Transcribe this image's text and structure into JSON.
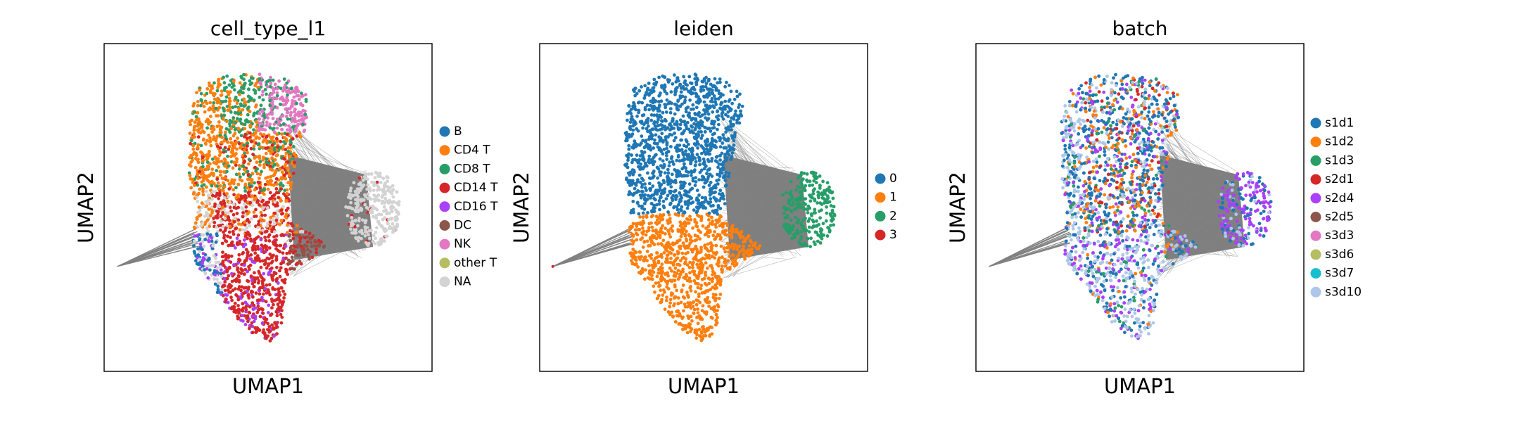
{
  "figure": {
    "type": "umap_embedding_panels",
    "background": "#ffffff",
    "edge_color": "#808080"
  },
  "chart_data": [
    {
      "type": "scatter",
      "title": "cell_type_l1",
      "xlabel": "UMAP1",
      "ylabel": "UMAP2",
      "xticks": false,
      "yticks": false,
      "grid": false,
      "legend_position": "right",
      "categories": [
        "B",
        "CD4 T",
        "CD8 T",
        "CD14 T",
        "CD16 T",
        "DC",
        "NK",
        "other T",
        "NA"
      ],
      "colors": [
        "#1f77b4",
        "#ff7f0e",
        "#279e68",
        "#d62728",
        "#aa40fc",
        "#8c564b",
        "#e377c2",
        "#b5bd61",
        "#d3d3d3"
      ]
    },
    {
      "type": "scatter",
      "title": "leiden",
      "xlabel": "UMAP1",
      "ylabel": "UMAP2",
      "xticks": false,
      "yticks": false,
      "grid": false,
      "legend_position": "right",
      "categories": [
        "0",
        "1",
        "2",
        "3"
      ],
      "colors": [
        "#1f77b4",
        "#ff7f0e",
        "#279e68",
        "#d62728"
      ]
    },
    {
      "type": "scatter",
      "title": "batch",
      "xlabel": "UMAP1",
      "ylabel": "UMAP2",
      "xticks": false,
      "yticks": false,
      "grid": false,
      "legend_position": "right",
      "categories": [
        "s1d1",
        "s1d2",
        "s1d3",
        "s2d1",
        "s2d4",
        "s2d5",
        "s3d3",
        "s3d6",
        "s3d7",
        "s3d10"
      ],
      "colors": [
        "#1f77b4",
        "#ff7f0e",
        "#279e68",
        "#d62728",
        "#aa40fc",
        "#8c564b",
        "#e377c2",
        "#b5bd61",
        "#17becf",
        "#aec7e8"
      ]
    }
  ]
}
